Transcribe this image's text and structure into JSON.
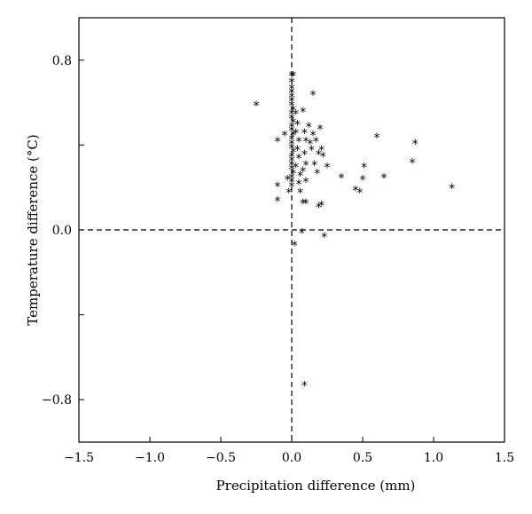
{
  "chart_data": {
    "type": "scatter",
    "title": "",
    "xlabel": "Precipitation difference (mm)",
    "ylabel": "Temperature difference (°C)",
    "xlim": [
      -1.5,
      1.5
    ],
    "ylim": [
      -1.0,
      1.0
    ],
    "x_ticks": [
      -1.5,
      -1.0,
      -0.5,
      0.0,
      0.5,
      1.0,
      1.5
    ],
    "x_tick_labels": [
      "−1.5",
      "−1.0",
      "−0.5",
      "0.0",
      "0.5",
      "1.0",
      "1.5"
    ],
    "y_ticks": [
      -0.8,
      -0.4,
      0.0,
      0.4,
      0.8
    ],
    "y_tick_labels": [
      "−0.8",
      "",
      "0.0",
      "",
      "0.8"
    ],
    "reference_lines": {
      "x": 0.0,
      "y": 0.0,
      "style": "dashed"
    },
    "grid": false,
    "marker": "*",
    "color": "#000000",
    "series": [
      {
        "points": [
          [
            -0.25,
            0.59
          ],
          [
            0.0,
            0.73
          ],
          [
            0.01,
            0.73
          ],
          [
            0.0,
            0.7
          ],
          [
            0.0,
            0.67
          ],
          [
            0.0,
            0.65
          ],
          [
            0.0,
            0.63
          ],
          [
            0.0,
            0.61
          ],
          [
            0.0,
            0.59
          ],
          [
            0.01,
            0.57
          ],
          [
            0.0,
            0.55
          ],
          [
            0.0,
            0.53
          ],
          [
            0.01,
            0.51
          ],
          [
            0.0,
            0.49
          ],
          [
            0.0,
            0.47
          ],
          [
            0.01,
            0.45
          ],
          [
            0.0,
            0.43
          ],
          [
            0.0,
            0.41
          ],
          [
            0.0,
            0.39
          ],
          [
            0.01,
            0.37
          ],
          [
            0.0,
            0.35
          ],
          [
            0.0,
            0.33
          ],
          [
            0.0,
            0.31
          ],
          [
            0.0,
            0.29
          ],
          [
            0.01,
            0.27
          ],
          [
            0.0,
            0.25
          ],
          [
            0.0,
            0.23
          ],
          [
            0.0,
            0.21
          ],
          [
            0.03,
            0.55
          ],
          [
            0.04,
            0.5
          ],
          [
            0.03,
            0.46
          ],
          [
            0.05,
            0.42
          ],
          [
            0.04,
            0.38
          ],
          [
            0.05,
            0.34
          ],
          [
            0.03,
            0.3
          ],
          [
            0.06,
            0.26
          ],
          [
            0.05,
            0.22
          ],
          [
            0.06,
            0.18
          ],
          [
            0.08,
            0.56
          ],
          [
            0.09,
            0.46
          ],
          [
            0.1,
            0.42
          ],
          [
            0.09,
            0.36
          ],
          [
            0.1,
            0.31
          ],
          [
            0.08,
            0.28
          ],
          [
            0.1,
            0.23
          ],
          [
            0.08,
            0.13
          ],
          [
            0.1,
            0.13
          ],
          [
            0.12,
            0.49
          ],
          [
            0.13,
            0.41
          ],
          [
            0.14,
            0.38
          ],
          [
            0.15,
            0.64
          ],
          [
            0.15,
            0.45
          ],
          [
            0.17,
            0.42
          ],
          [
            0.16,
            0.31
          ],
          [
            0.18,
            0.27
          ],
          [
            0.19,
            0.36
          ],
          [
            0.2,
            0.48
          ],
          [
            0.21,
            0.38
          ],
          [
            0.22,
            0.35
          ],
          [
            0.19,
            0.11
          ],
          [
            0.21,
            0.12
          ],
          [
            0.25,
            0.3
          ],
          [
            0.35,
            0.25
          ],
          [
            0.45,
            0.19
          ],
          [
            0.48,
            0.18
          ],
          [
            0.5,
            0.24
          ],
          [
            0.51,
            0.3
          ],
          [
            0.6,
            0.44
          ],
          [
            0.65,
            0.25
          ],
          [
            0.85,
            0.32
          ],
          [
            0.87,
            0.41
          ],
          [
            1.13,
            0.2
          ],
          [
            -0.1,
            0.42
          ],
          [
            -0.05,
            0.45
          ],
          [
            -0.1,
            0.14
          ],
          [
            -0.1,
            0.21
          ],
          [
            -0.02,
            0.18
          ],
          [
            -0.03,
            0.24
          ],
          [
            0.02,
            -0.07
          ],
          [
            0.07,
            -0.01
          ],
          [
            0.23,
            -0.03
          ],
          [
            0.09,
            -0.73
          ]
        ]
      }
    ]
  }
}
